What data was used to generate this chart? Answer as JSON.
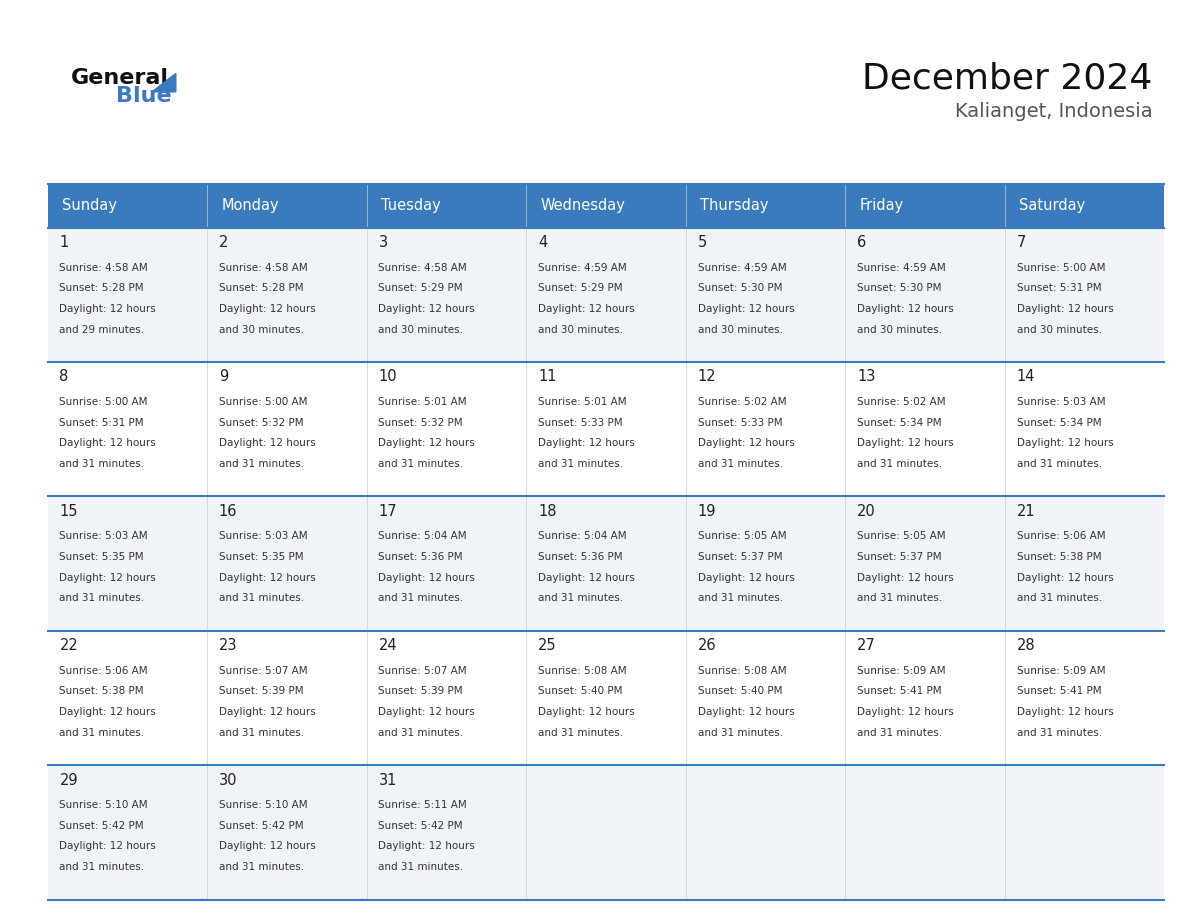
{
  "title": "December 2024",
  "subtitle": "Kalianget, Indonesia",
  "days_of_week": [
    "Sunday",
    "Monday",
    "Tuesday",
    "Wednesday",
    "Thursday",
    "Friday",
    "Saturday"
  ],
  "header_bg_color": "#3a7abf",
  "header_text_color": "#ffffff",
  "cell_bg_color_odd": "#f5f5f5",
  "cell_bg_color_even": "#ffffff",
  "border_color": "#3a7abf",
  "day_num_color": "#222222",
  "cell_text_color": "#333333",
  "weeks": [
    [
      {
        "day": 1,
        "sunrise": "4:58 AM",
        "sunset": "5:28 PM",
        "daylight": "12 hours and 29 minutes."
      },
      {
        "day": 2,
        "sunrise": "4:58 AM",
        "sunset": "5:28 PM",
        "daylight": "12 hours and 30 minutes."
      },
      {
        "day": 3,
        "sunrise": "4:58 AM",
        "sunset": "5:29 PM",
        "daylight": "12 hours and 30 minutes."
      },
      {
        "day": 4,
        "sunrise": "4:59 AM",
        "sunset": "5:29 PM",
        "daylight": "12 hours and 30 minutes."
      },
      {
        "day": 5,
        "sunrise": "4:59 AM",
        "sunset": "5:30 PM",
        "daylight": "12 hours and 30 minutes."
      },
      {
        "day": 6,
        "sunrise": "4:59 AM",
        "sunset": "5:30 PM",
        "daylight": "12 hours and 30 minutes."
      },
      {
        "day": 7,
        "sunrise": "5:00 AM",
        "sunset": "5:31 PM",
        "daylight": "12 hours and 30 minutes."
      }
    ],
    [
      {
        "day": 8,
        "sunrise": "5:00 AM",
        "sunset": "5:31 PM",
        "daylight": "12 hours and 31 minutes."
      },
      {
        "day": 9,
        "sunrise": "5:00 AM",
        "sunset": "5:32 PM",
        "daylight": "12 hours and 31 minutes."
      },
      {
        "day": 10,
        "sunrise": "5:01 AM",
        "sunset": "5:32 PM",
        "daylight": "12 hours and 31 minutes."
      },
      {
        "day": 11,
        "sunrise": "5:01 AM",
        "sunset": "5:33 PM",
        "daylight": "12 hours and 31 minutes."
      },
      {
        "day": 12,
        "sunrise": "5:02 AM",
        "sunset": "5:33 PM",
        "daylight": "12 hours and 31 minutes."
      },
      {
        "day": 13,
        "sunrise": "5:02 AM",
        "sunset": "5:34 PM",
        "daylight": "12 hours and 31 minutes."
      },
      {
        "day": 14,
        "sunrise": "5:03 AM",
        "sunset": "5:34 PM",
        "daylight": "12 hours and 31 minutes."
      }
    ],
    [
      {
        "day": 15,
        "sunrise": "5:03 AM",
        "sunset": "5:35 PM",
        "daylight": "12 hours and 31 minutes."
      },
      {
        "day": 16,
        "sunrise": "5:03 AM",
        "sunset": "5:35 PM",
        "daylight": "12 hours and 31 minutes."
      },
      {
        "day": 17,
        "sunrise": "5:04 AM",
        "sunset": "5:36 PM",
        "daylight": "12 hours and 31 minutes."
      },
      {
        "day": 18,
        "sunrise": "5:04 AM",
        "sunset": "5:36 PM",
        "daylight": "12 hours and 31 minutes."
      },
      {
        "day": 19,
        "sunrise": "5:05 AM",
        "sunset": "5:37 PM",
        "daylight": "12 hours and 31 minutes."
      },
      {
        "day": 20,
        "sunrise": "5:05 AM",
        "sunset": "5:37 PM",
        "daylight": "12 hours and 31 minutes."
      },
      {
        "day": 21,
        "sunrise": "5:06 AM",
        "sunset": "5:38 PM",
        "daylight": "12 hours and 31 minutes."
      }
    ],
    [
      {
        "day": 22,
        "sunrise": "5:06 AM",
        "sunset": "5:38 PM",
        "daylight": "12 hours and 31 minutes."
      },
      {
        "day": 23,
        "sunrise": "5:07 AM",
        "sunset": "5:39 PM",
        "daylight": "12 hours and 31 minutes."
      },
      {
        "day": 24,
        "sunrise": "5:07 AM",
        "sunset": "5:39 PM",
        "daylight": "12 hours and 31 minutes."
      },
      {
        "day": 25,
        "sunrise": "5:08 AM",
        "sunset": "5:40 PM",
        "daylight": "12 hours and 31 minutes."
      },
      {
        "day": 26,
        "sunrise": "5:08 AM",
        "sunset": "5:40 PM",
        "daylight": "12 hours and 31 minutes."
      },
      {
        "day": 27,
        "sunrise": "5:09 AM",
        "sunset": "5:41 PM",
        "daylight": "12 hours and 31 minutes."
      },
      {
        "day": 28,
        "sunrise": "5:09 AM",
        "sunset": "5:41 PM",
        "daylight": "12 hours and 31 minutes."
      }
    ],
    [
      {
        "day": 29,
        "sunrise": "5:10 AM",
        "sunset": "5:42 PM",
        "daylight": "12 hours and 31 minutes."
      },
      {
        "day": 30,
        "sunrise": "5:10 AM",
        "sunset": "5:42 PM",
        "daylight": "12 hours and 31 minutes."
      },
      {
        "day": 31,
        "sunrise": "5:11 AM",
        "sunset": "5:42 PM",
        "daylight": "12 hours and 31 minutes."
      },
      null,
      null,
      null,
      null
    ]
  ],
  "logo_general_color": "#111111",
  "logo_blue_color": "#3a7abf",
  "fig_bg_color": "#ffffff"
}
